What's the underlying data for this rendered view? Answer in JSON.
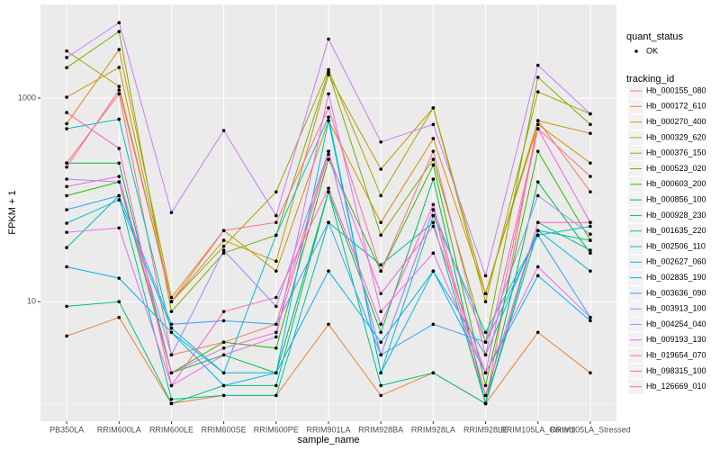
{
  "chart_data": {
    "type": "line",
    "x_label": "sample_name",
    "y_label": "FPKM + 1",
    "categories": [
      "PB350LA",
      "RRIM600LA",
      "RRIM600LE",
      "RRIM600SE",
      "RRIM600PE",
      "RRIM901LA",
      "RRIM928BA",
      "RRIM928LA",
      "RRIM928LE",
      "RRIM105LA_Control",
      "RRIM105LA_Stressed"
    ],
    "ylim": [
      0.67,
      8300
    ],
    "yticks": [
      10,
      1000
    ],
    "y_minor_breaks": [
      1,
      100
    ],
    "log_y": true,
    "grid": true,
    "legend_position": "right",
    "shape_legend": {
      "title": "quant_status",
      "labels": [
        "OK"
      ]
    },
    "legend_title": "tracking_id",
    "point_color": "#000000",
    "series": [
      {
        "name": "Hb_000155_080",
        "color": "#F8766D",
        "values": [
          230,
          1100,
          3,
          4,
          6,
          300,
          3,
          80,
          1,
          600,
          120
        ]
      },
      {
        "name": "Hb_000172_610",
        "color": "#EA8331",
        "values": [
          4.6,
          7,
          1,
          1.2,
          1.2,
          6,
          1.2,
          2,
          1,
          5,
          2
        ]
      },
      {
        "name": "Hb_000270_400",
        "color": "#D89000",
        "values": [
          560,
          3000,
          11,
          50,
          20,
          600,
          60,
          400,
          12,
          550,
          230
        ]
      },
      {
        "name": "Hb_000329_620",
        "color": "#C09B00",
        "values": [
          1020,
          2000,
          10,
          40,
          25,
          1700,
          200,
          800,
          12,
          600,
          450
        ]
      },
      {
        "name": "Hb_000376_150",
        "color": "#A3A500",
        "values": [
          2900,
          1300,
          10,
          35,
          120,
          1900,
          110,
          800,
          10,
          1150,
          700
        ]
      },
      {
        "name": "Hb_000523_020",
        "color": "#7CAE00",
        "values": [
          1990,
          4500,
          8,
          30,
          45,
          1800,
          45,
          250,
          4,
          1600,
          550
        ]
      },
      {
        "name": "Hb_000603_200",
        "color": "#39B600",
        "values": [
          110,
          150,
          2,
          4,
          3.5,
          250,
          20,
          220,
          1.5,
          300,
          40
        ]
      },
      {
        "name": "Hb_000856_100",
        "color": "#00BB4E",
        "values": [
          230,
          230,
          2,
          3,
          2,
          120,
          5,
          160,
          1,
          150,
          30
        ]
      },
      {
        "name": "Hb_000928_230",
        "color": "#00BF7D",
        "values": [
          9,
          10,
          1,
          1.5,
          1.5,
          120,
          1.5,
          2,
          1,
          50,
          40
        ]
      },
      {
        "name": "Hb_001635_220",
        "color": "#00C1A3",
        "values": [
          34,
          110,
          1.1,
          1.2,
          1.2,
          60,
          23,
          60,
          1,
          60,
          32
        ]
      },
      {
        "name": "Hb_002506_110",
        "color": "#00BFC4",
        "values": [
          500,
          620,
          5,
          2,
          45,
          650,
          2,
          70,
          5,
          45,
          55
        ]
      },
      {
        "name": "Hb_002627_060",
        "color": "#00BAE0",
        "values": [
          59,
          100,
          5.5,
          2,
          2,
          600,
          2,
          20,
          3,
          50,
          20
        ]
      },
      {
        "name": "Hb_002835_190",
        "color": "#00B0F6",
        "values": [
          22,
          17,
          5,
          1.5,
          2,
          20,
          4,
          20,
          2,
          18,
          6.5
        ]
      },
      {
        "name": "Hb_003636_090",
        "color": "#35A2FF",
        "values": [
          80,
          110,
          6,
          6.5,
          6,
          60,
          3,
          6,
          4,
          45,
          7
        ]
      },
      {
        "name": "Hb_003913_100",
        "color": "#9590FF",
        "values": [
          160,
          150,
          3,
          32,
          9,
          300,
          3,
          80,
          4,
          110,
          46
        ]
      },
      {
        "name": "Hb_004254_040",
        "color": "#C77CFF",
        "values": [
          2500,
          5500,
          75,
          480,
          70,
          3800,
          370,
          550,
          18,
          2100,
          700
        ]
      },
      {
        "name": "Hb_009193_130",
        "color": "#E76BF3",
        "values": [
          48,
          53,
          1.5,
          3,
          4.5,
          1100,
          8,
          30,
          2,
          22,
          7
        ]
      },
      {
        "name": "Hb_019654_070",
        "color": "#FA62DB",
        "values": [
          135,
          170,
          2,
          3.5,
          5,
          280,
          12,
          55,
          2,
          500,
          60
        ]
      },
      {
        "name": "Hb_098315_100",
        "color": "#FF62BC",
        "values": [
          720,
          320,
          1.5,
          8,
          11,
          130,
          6,
          90,
          1.2,
          60,
          60
        ]
      },
      {
        "name": "Hb_126669_010",
        "color": "#FF6C91",
        "values": [
          210,
          1200,
          10,
          50,
          60,
          800,
          20,
          300,
          3,
          500,
          170
        ]
      }
    ]
  }
}
